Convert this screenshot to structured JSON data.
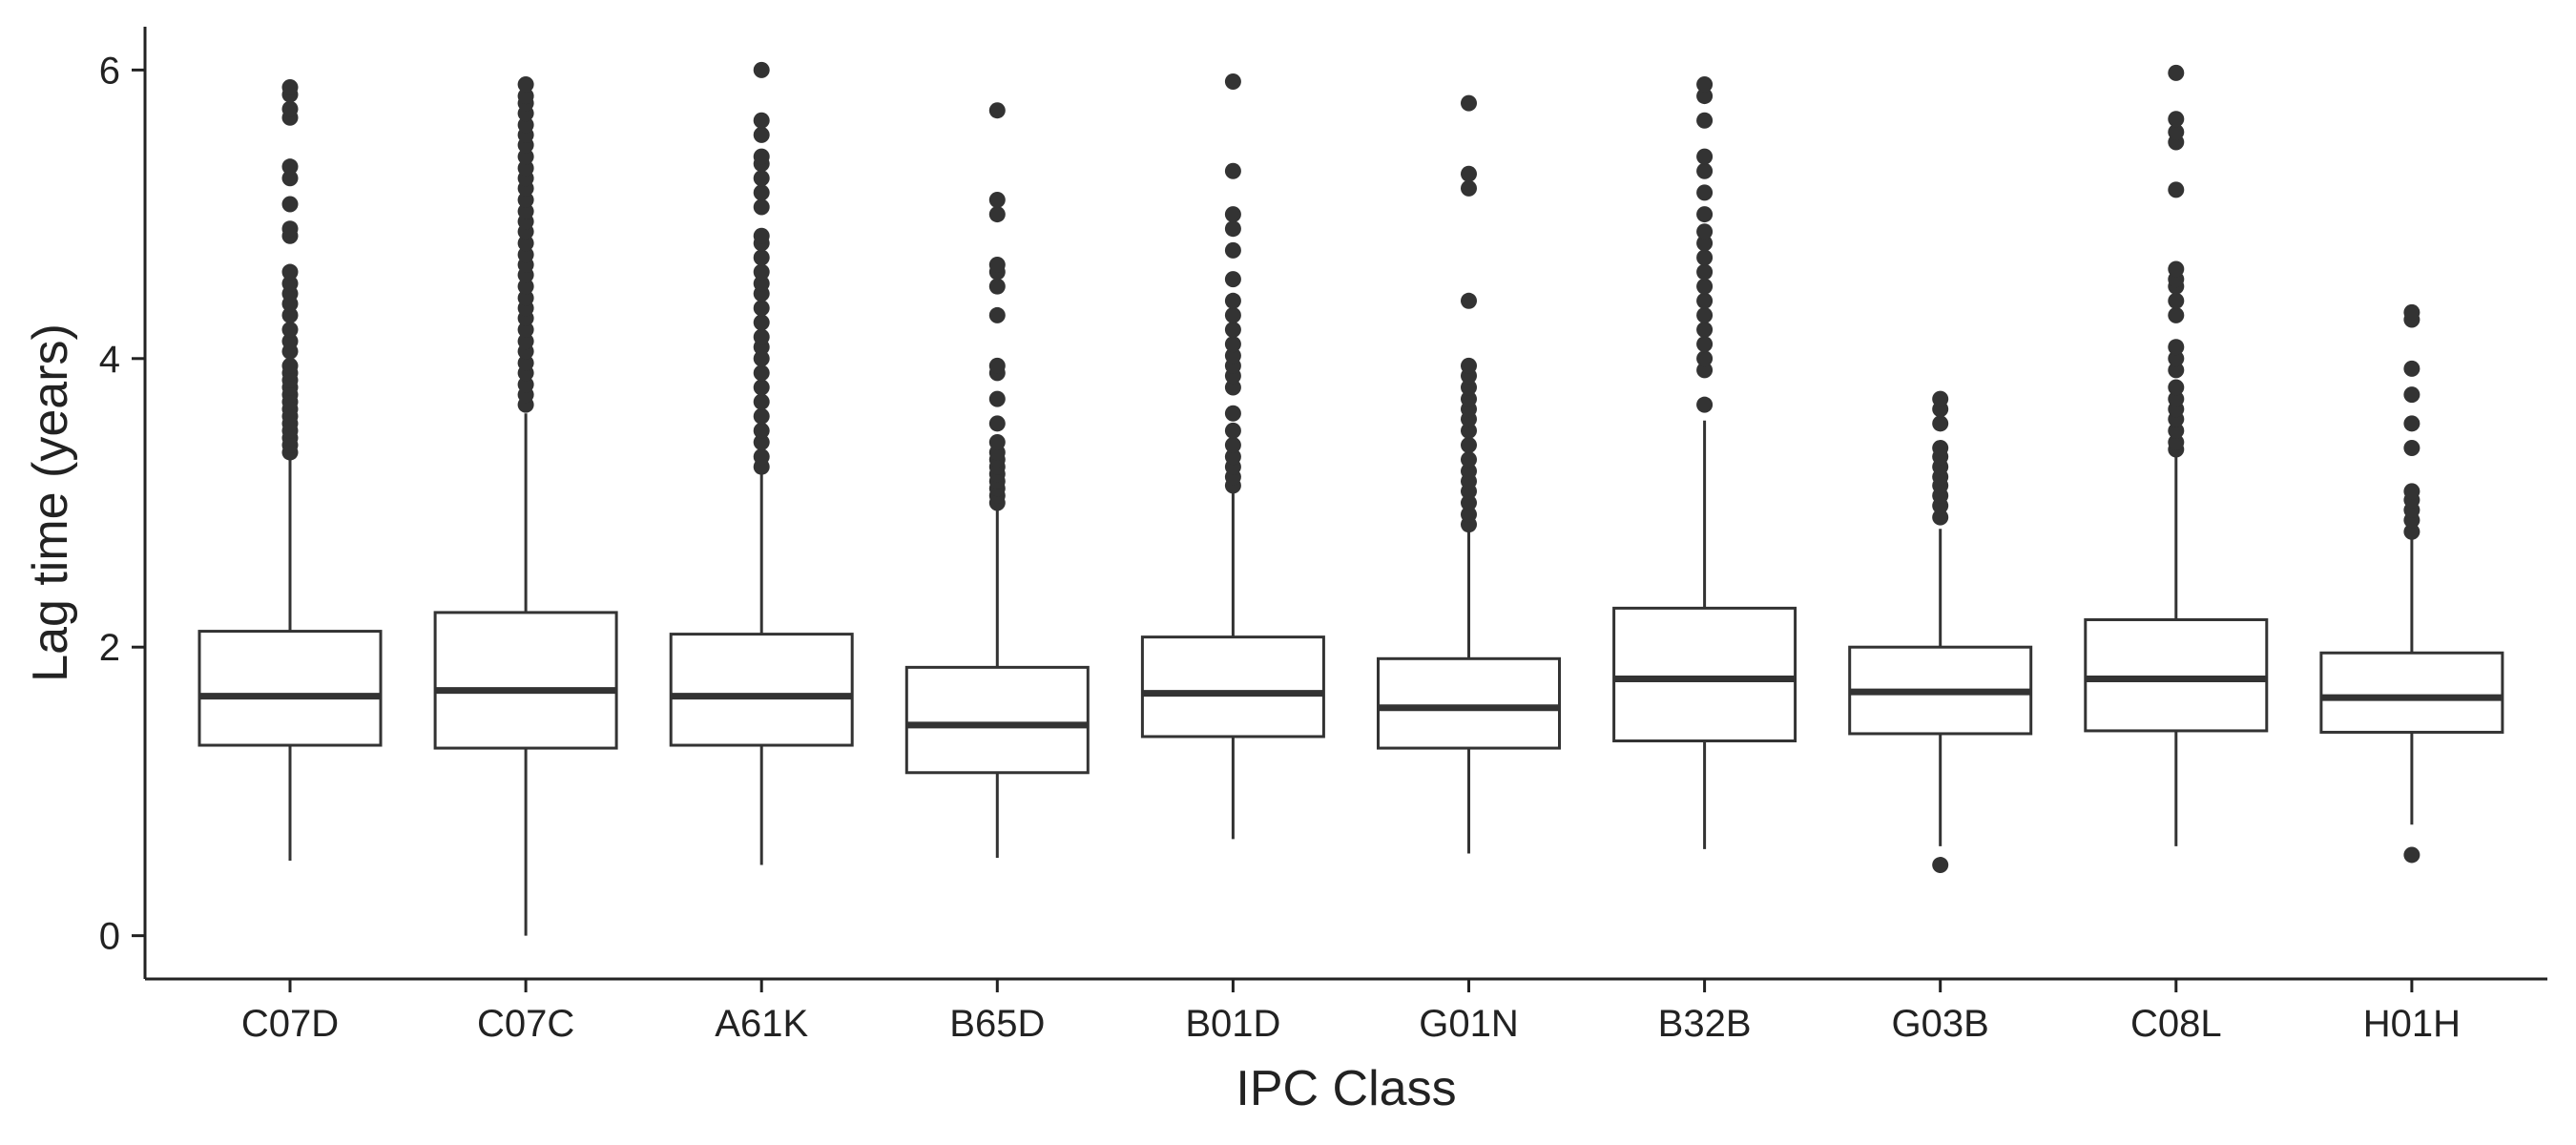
{
  "chart_data": {
    "type": "box",
    "title": "",
    "xlabel": "IPC Class",
    "ylabel": "Lag time (years)",
    "ylim": [
      -0.3,
      6.3
    ],
    "yticks": [
      0,
      2,
      4,
      6
    ],
    "grid": false,
    "legend": "none",
    "colors": {
      "ink": "#333333",
      "box_fill": "#ffffff",
      "background": "#ffffff"
    },
    "categories": [
      "C07D",
      "C07C",
      "A61K",
      "B65D",
      "B01D",
      "G01N",
      "B32B",
      "G03B",
      "C08L",
      "H01H"
    ],
    "boxes": [
      {
        "category": "C07D",
        "whisker_low": 0.52,
        "q1": 1.32,
        "median": 1.66,
        "q3": 2.11,
        "whisker_high": 3.3,
        "outliers": [
          3.35,
          3.4,
          3.45,
          3.5,
          3.55,
          3.6,
          3.65,
          3.7,
          3.75,
          3.8,
          3.85,
          3.9,
          3.95,
          4.05,
          4.12,
          4.2,
          4.3,
          4.38,
          4.45,
          4.52,
          4.6,
          4.85,
          4.9,
          5.07,
          5.25,
          5.33,
          5.67,
          5.73,
          5.83,
          5.88
        ]
      },
      {
        "category": "C07C",
        "whisker_low": 0.0,
        "q1": 1.3,
        "median": 1.7,
        "q3": 2.24,
        "whisker_high": 3.62,
        "outliers": [
          3.68,
          3.75,
          3.82,
          3.9,
          3.97,
          4.05,
          4.12,
          4.2,
          4.28,
          4.35,
          4.42,
          4.5,
          4.58,
          4.65,
          4.72,
          4.8,
          4.88,
          4.95,
          5.02,
          5.1,
          5.18,
          5.25,
          5.32,
          5.4,
          5.48,
          5.55,
          5.62,
          5.7,
          5.77,
          5.82,
          5.9
        ]
      },
      {
        "category": "A61K",
        "whisker_low": 0.49,
        "q1": 1.32,
        "median": 1.66,
        "q3": 2.09,
        "whisker_high": 3.2,
        "outliers": [
          3.25,
          3.32,
          3.42,
          3.5,
          3.6,
          3.7,
          3.8,
          3.9,
          4.0,
          4.08,
          4.15,
          4.25,
          4.35,
          4.45,
          4.52,
          4.6,
          4.7,
          4.8,
          4.85,
          5.05,
          5.15,
          5.25,
          5.35,
          5.4,
          5.55,
          5.65,
          6.0
        ]
      },
      {
        "category": "B65D",
        "whisker_low": 0.54,
        "q1": 1.13,
        "median": 1.46,
        "q3": 1.86,
        "whisker_high": 2.95,
        "outliers": [
          3.0,
          3.05,
          3.1,
          3.15,
          3.2,
          3.25,
          3.3,
          3.35,
          3.42,
          3.55,
          3.72,
          3.9,
          3.95,
          4.3,
          4.5,
          4.6,
          4.65,
          5.0,
          5.1,
          5.72
        ]
      },
      {
        "category": "B01D",
        "whisker_low": 0.67,
        "q1": 1.38,
        "median": 1.68,
        "q3": 2.07,
        "whisker_high": 3.07,
        "outliers": [
          3.12,
          3.18,
          3.25,
          3.32,
          3.4,
          3.5,
          3.62,
          3.8,
          3.88,
          3.95,
          4.02,
          4.1,
          4.2,
          4.3,
          4.4,
          4.55,
          4.75,
          4.9,
          5.0,
          5.3,
          5.92
        ]
      },
      {
        "category": "G01N",
        "whisker_low": 0.57,
        "q1": 1.3,
        "median": 1.58,
        "q3": 1.92,
        "whisker_high": 2.8,
        "outliers": [
          2.85,
          2.92,
          3.0,
          3.08,
          3.15,
          3.22,
          3.3,
          3.4,
          3.5,
          3.58,
          3.65,
          3.72,
          3.8,
          3.88,
          3.95,
          4.4,
          5.18,
          5.28,
          5.77
        ]
      },
      {
        "category": "B32B",
        "whisker_low": 0.6,
        "q1": 1.35,
        "median": 1.78,
        "q3": 2.27,
        "whisker_high": 3.57,
        "outliers": [
          3.68,
          3.92,
          4.0,
          4.1,
          4.2,
          4.3,
          4.4,
          4.5,
          4.6,
          4.7,
          4.8,
          4.88,
          5.0,
          5.15,
          5.3,
          5.4,
          5.65,
          5.82,
          5.9
        ]
      },
      {
        "category": "G03B",
        "whisker_low": 0.62,
        "q1": 1.4,
        "median": 1.69,
        "q3": 2.0,
        "whisker_high": 2.82,
        "outliers": [
          0.49,
          2.9,
          2.98,
          3.05,
          3.12,
          3.18,
          3.25,
          3.32,
          3.38,
          3.55,
          3.65,
          3.72
        ]
      },
      {
        "category": "C08L",
        "whisker_low": 0.62,
        "q1": 1.42,
        "median": 1.78,
        "q3": 2.19,
        "whisker_high": 3.32,
        "outliers": [
          3.37,
          3.42,
          3.5,
          3.58,
          3.65,
          3.72,
          3.8,
          3.92,
          4.0,
          4.08,
          4.3,
          4.4,
          4.5,
          4.55,
          4.62,
          5.17,
          5.5,
          5.57,
          5.66,
          5.98
        ]
      },
      {
        "category": "H01H",
        "whisker_low": 0.77,
        "q1": 1.41,
        "median": 1.65,
        "q3": 1.96,
        "whisker_high": 2.75,
        "outliers": [
          0.56,
          2.8,
          2.88,
          2.95,
          3.02,
          3.08,
          3.38,
          3.55,
          3.75,
          3.93,
          4.27,
          4.32
        ]
      }
    ]
  }
}
